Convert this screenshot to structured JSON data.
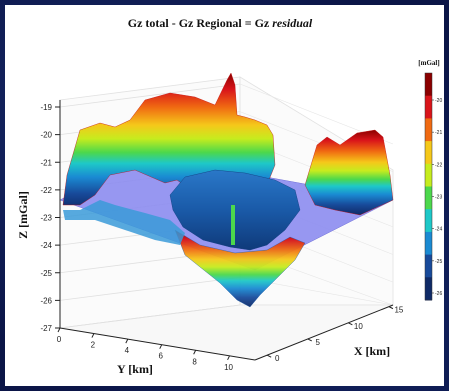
{
  "chart_data": {
    "type": "surface3d",
    "title": {
      "prefix": "Gz total - Gz Regional = ",
      "suffix_normal": "Gz ",
      "suffix_italic": "residual"
    },
    "zlabel": "Z [mGal]",
    "xlabel": "X [km]",
    "ylabel": "Y [km]",
    "zlim": [
      -27,
      -19
    ],
    "z_ticks": [
      "-19",
      "-20",
      "-21",
      "-22",
      "-23",
      "-24",
      "-25",
      "-26",
      "-27"
    ],
    "y_ticks": [
      "0",
      "2",
      "4",
      "6",
      "8",
      "10"
    ],
    "x_ticks": [
      "0",
      "5",
      "10",
      "15"
    ],
    "grid": true,
    "colorbar": {
      "label": "[mGal]",
      "ticks": [
        "-20",
        "-21",
        "-22",
        "-23",
        "-24",
        "-25",
        "-26"
      ],
      "colors": [
        "#8b0000",
        "#d9141a",
        "#f06a12",
        "#f5c81a",
        "#c6ec1e",
        "#4cd84c",
        "#1ec8c8",
        "#1a8ad2",
        "#184a9a",
        "#0f2a66"
      ]
    },
    "regional_plane_color": "#8c8cf0"
  }
}
